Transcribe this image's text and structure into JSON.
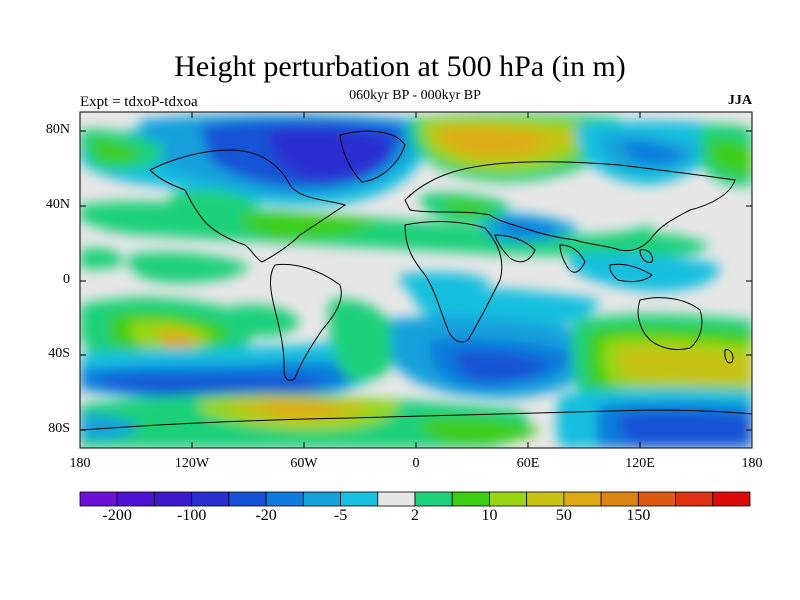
{
  "title": "Height perturbation at 500 hPa (in m)",
  "subtitle": "060kyr BP - 000kyr BP",
  "left_label": "Expt = tdxoP-tdxoa",
  "right_label": "JJA",
  "lat_ticks": [
    "80N",
    "40N",
    "0",
    "40S",
    "80S"
  ],
  "lon_ticks": [
    "180",
    "120W",
    "60W",
    "0",
    "60E",
    "120E",
    "180"
  ],
  "colorbar": {
    "colors": [
      "#6a12d6",
      "#5012d2",
      "#3e1acc",
      "#2a2fd0",
      "#1553d6",
      "#0f7bdc",
      "#14a1dc",
      "#18bfde",
      "#e6e6e6",
      "#1ed07a",
      "#3dcd14",
      "#98d614",
      "#c7c214",
      "#ddaa14",
      "#dd8214",
      "#dd5a14",
      "#dd3214",
      "#dc0a0a"
    ],
    "labels": [
      "-200",
      "-100",
      "-20",
      "-5",
      "2",
      "10",
      "50",
      "150"
    ]
  }
}
